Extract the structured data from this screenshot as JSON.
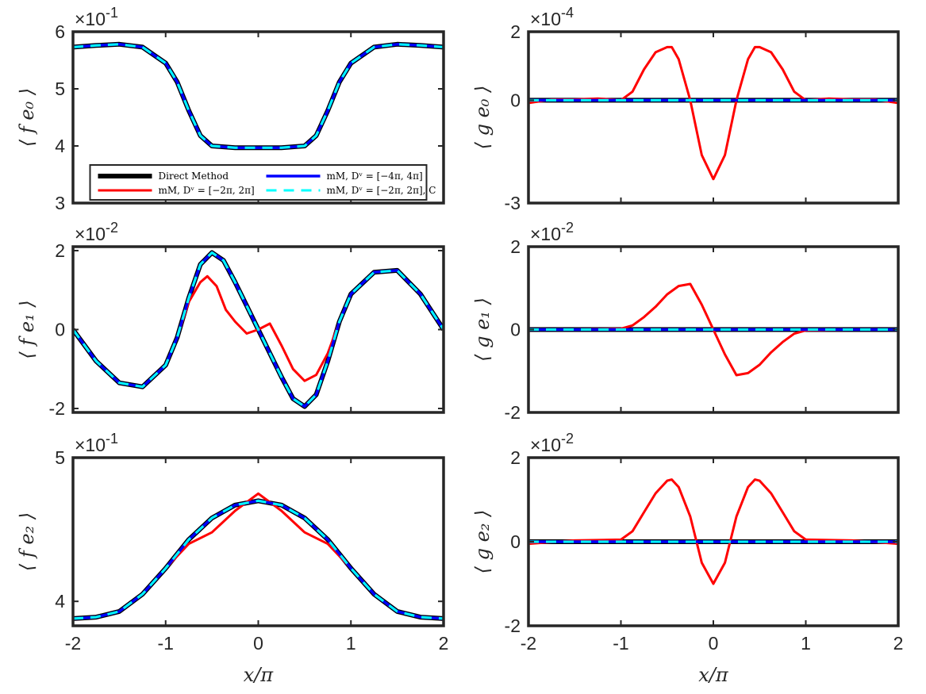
{
  "colors": {
    "direct": "#000000",
    "mm2": "#ff0000",
    "mm4": "#0000ff",
    "mmc": "#00ffff",
    "axis": "#262626"
  },
  "chart_data": [
    {
      "type": "line",
      "id": "fe0",
      "ylabel": "⟨ f e₀ ⟩",
      "xlabel": "",
      "multiplier_base": "×10",
      "multiplier_exp": "-1",
      "xlim": [
        -2,
        2
      ],
      "ylim": [
        3,
        6
      ],
      "yticks": [
        3,
        4,
        5,
        6
      ],
      "ytick_labels": [
        "3",
        "4",
        "5",
        "6"
      ],
      "xticks": [
        -2,
        -1,
        0,
        1,
        2
      ],
      "xtick_labels": [],
      "legend": {
        "placement": "lower-center",
        "entries": [
          "Direct Method",
          "mM, Dᵛ = [−2π, 2π]",
          "mM, Dᵛ = [−4π, 4π]",
          "mM, Dᵛ = [−2π, 2π], C"
        ]
      },
      "series": [
        {
          "name": "Direct Method",
          "style": "direct",
          "x": [
            -2,
            -1.75,
            -1.5,
            -1.25,
            -1.0,
            -0.875,
            -0.75,
            -0.625,
            -0.5,
            -0.25,
            0,
            0.25,
            0.5,
            0.625,
            0.75,
            0.875,
            1.0,
            1.25,
            1.5,
            1.75,
            2
          ],
          "y": [
            5.73,
            5.76,
            5.78,
            5.73,
            5.45,
            5.12,
            4.62,
            4.18,
            4.0,
            3.97,
            3.97,
            3.97,
            4.0,
            4.18,
            4.62,
            5.12,
            5.45,
            5.73,
            5.78,
            5.76,
            5.73
          ]
        },
        {
          "name": "mM, Dᵛ = [−2π, 2π]",
          "style": "mm2",
          "x": [
            -2,
            -1.75,
            -1.5,
            -1.25,
            -1.0,
            -0.875,
            -0.75,
            -0.625,
            -0.5,
            -0.25,
            0,
            0.25,
            0.5,
            0.625,
            0.75,
            0.875,
            1.0,
            1.25,
            1.5,
            1.75,
            2
          ],
          "y": [
            5.73,
            5.76,
            5.78,
            5.73,
            5.45,
            5.12,
            4.62,
            4.18,
            4.0,
            3.97,
            3.97,
            3.97,
            4.0,
            4.18,
            4.62,
            5.12,
            5.45,
            5.73,
            5.78,
            5.76,
            5.73
          ]
        },
        {
          "name": "mM, Dᵛ = [−4π, 4π]",
          "style": "mm4",
          "x": [
            -2,
            -1.75,
            -1.5,
            -1.25,
            -1.0,
            -0.875,
            -0.75,
            -0.625,
            -0.5,
            -0.25,
            0,
            0.25,
            0.5,
            0.625,
            0.75,
            0.875,
            1.0,
            1.25,
            1.5,
            1.75,
            2
          ],
          "y": [
            5.73,
            5.76,
            5.78,
            5.73,
            5.45,
            5.12,
            4.62,
            4.18,
            4.0,
            3.97,
            3.97,
            3.97,
            4.0,
            4.18,
            4.62,
            5.12,
            5.45,
            5.73,
            5.78,
            5.76,
            5.73
          ]
        },
        {
          "name": "mM, Dᵛ = [−2π, 2π], C",
          "style": "mmc",
          "x": [
            -2,
            -1.75,
            -1.5,
            -1.25,
            -1.0,
            -0.875,
            -0.75,
            -0.625,
            -0.5,
            -0.25,
            0,
            0.25,
            0.5,
            0.625,
            0.75,
            0.875,
            1.0,
            1.25,
            1.5,
            1.75,
            2
          ],
          "y": [
            5.73,
            5.76,
            5.78,
            5.73,
            5.45,
            5.12,
            4.62,
            4.18,
            4.0,
            3.97,
            3.97,
            3.97,
            4.0,
            4.18,
            4.62,
            5.12,
            5.45,
            5.73,
            5.78,
            5.76,
            5.73
          ]
        }
      ]
    },
    {
      "type": "line",
      "id": "ge0",
      "ylabel": "⟨ g e₀ ⟩",
      "xlabel": "",
      "multiplier_base": "×10",
      "multiplier_exp": "-4",
      "xlim": [
        -2,
        2
      ],
      "ylim": [
        -3,
        2
      ],
      "yticks": [
        -3,
        0,
        2
      ],
      "ytick_labels": [
        "-3",
        "0",
        "2"
      ],
      "xticks": [
        -2,
        -1,
        0,
        1,
        2
      ],
      "xtick_labels": [],
      "series": [
        {
          "name": "mM, Dᵛ = [−2π, 2π]",
          "style": "mm2",
          "x": [
            -2,
            -1.75,
            -1.5,
            -1.25,
            -1.0,
            -0.875,
            -0.75,
            -0.625,
            -0.5,
            -0.45,
            -0.375,
            -0.25,
            -0.125,
            0,
            0.125,
            0.25,
            0.375,
            0.45,
            0.5,
            0.625,
            0.75,
            0.875,
            1.0,
            1.25,
            1.5,
            1.75,
            2
          ],
          "y": [
            -0.08,
            0.02,
            0.02,
            0.05,
            0.0,
            0.25,
            0.9,
            1.4,
            1.55,
            1.55,
            1.2,
            0.0,
            -1.6,
            -2.3,
            -1.6,
            0.0,
            1.2,
            1.55,
            1.55,
            1.4,
            0.9,
            0.25,
            0.0,
            0.05,
            0.02,
            0.02,
            -0.08
          ]
        },
        {
          "name": "Direct Method",
          "style": "direct",
          "x": [
            -2,
            2
          ],
          "y": [
            0.0,
            0.0
          ]
        },
        {
          "name": "mM, Dᵛ = [−4π, 4π]",
          "style": "mm4",
          "x": [
            -2,
            2
          ],
          "y": [
            0.0,
            0.0
          ]
        },
        {
          "name": "mM, Dᵛ = [−2π, 2π], C",
          "style": "mmc",
          "x": [
            -2,
            2
          ],
          "y": [
            0.0,
            0.0
          ]
        }
      ]
    },
    {
      "type": "line",
      "id": "fe1",
      "ylabel": "⟨ f e₁ ⟩",
      "xlabel": "",
      "multiplier_base": "×10",
      "multiplier_exp": "-2",
      "xlim": [
        -2,
        2
      ],
      "ylim": [
        -2.1,
        2.1
      ],
      "yticks": [
        -2,
        0,
        2
      ],
      "ytick_labels": [
        "-2",
        "0",
        "2"
      ],
      "xticks": [
        -2,
        -1,
        0,
        1,
        2
      ],
      "xtick_labels": [],
      "series": [
        {
          "name": "Direct Method",
          "style": "direct",
          "x": [
            -2,
            -1.75,
            -1.5,
            -1.25,
            -1.0,
            -0.875,
            -0.75,
            -0.625,
            -0.5,
            -0.375,
            -0.25,
            -0.125,
            0,
            0.125,
            0.25,
            0.375,
            0.5,
            0.625,
            0.75,
            0.875,
            1.0,
            1.25,
            1.5,
            1.75,
            2
          ],
          "y": [
            0.0,
            -0.8,
            -1.35,
            -1.45,
            -0.9,
            -0.2,
            0.8,
            1.65,
            1.95,
            1.75,
            1.2,
            0.6,
            0.0,
            -0.6,
            -1.2,
            -1.75,
            -1.95,
            -1.65,
            -0.8,
            0.2,
            0.9,
            1.45,
            1.5,
            0.9,
            0.0
          ]
        },
        {
          "name": "mM, Dᵛ = [−2π, 2π]",
          "style": "mm2",
          "x": [
            -2,
            -1.75,
            -1.5,
            -1.25,
            -1.0,
            -0.875,
            -0.75,
            -0.625,
            -0.55,
            -0.45,
            -0.35,
            -0.25,
            -0.125,
            0,
            0.125,
            0.25,
            0.375,
            0.5,
            0.625,
            0.75,
            0.875,
            1.0,
            1.25,
            1.5,
            1.75,
            2
          ],
          "y": [
            0.0,
            -0.8,
            -1.35,
            -1.45,
            -0.9,
            -0.2,
            0.7,
            1.2,
            1.35,
            1.1,
            0.5,
            0.2,
            -0.1,
            0.0,
            0.15,
            -0.4,
            -1.0,
            -1.3,
            -1.15,
            -0.6,
            0.2,
            0.9,
            1.45,
            1.5,
            0.9,
            0.0
          ]
        },
        {
          "name": "mM, Dᵛ = [−4π, 4π]",
          "style": "mm4",
          "x": [
            -2,
            -1.75,
            -1.5,
            -1.25,
            -1.0,
            -0.875,
            -0.75,
            -0.625,
            -0.5,
            -0.375,
            -0.25,
            -0.125,
            0,
            0.125,
            0.25,
            0.375,
            0.5,
            0.625,
            0.75,
            0.875,
            1.0,
            1.25,
            1.5,
            1.75,
            2
          ],
          "y": [
            0.0,
            -0.8,
            -1.35,
            -1.45,
            -0.9,
            -0.2,
            0.8,
            1.65,
            1.95,
            1.75,
            1.2,
            0.6,
            0.0,
            -0.6,
            -1.2,
            -1.75,
            -1.95,
            -1.65,
            -0.8,
            0.2,
            0.9,
            1.45,
            1.5,
            0.9,
            0.0
          ]
        },
        {
          "name": "mM, Dᵛ = [−2π, 2π], C",
          "style": "mmc",
          "x": [
            -2,
            -1.75,
            -1.5,
            -1.25,
            -1.0,
            -0.875,
            -0.75,
            -0.625,
            -0.5,
            -0.375,
            -0.25,
            -0.125,
            0,
            0.125,
            0.25,
            0.375,
            0.5,
            0.625,
            0.75,
            0.875,
            1.0,
            1.25,
            1.5,
            1.75,
            2
          ],
          "y": [
            0.0,
            -0.8,
            -1.35,
            -1.45,
            -0.9,
            -0.2,
            0.8,
            1.65,
            1.95,
            1.75,
            1.2,
            0.6,
            0.0,
            -0.6,
            -1.2,
            -1.75,
            -1.95,
            -1.65,
            -0.8,
            0.2,
            0.9,
            1.45,
            1.5,
            0.9,
            0.0
          ]
        }
      ]
    },
    {
      "type": "line",
      "id": "ge1",
      "ylabel": "⟨ g e₁ ⟩",
      "xlabel": "",
      "multiplier_base": "×10",
      "multiplier_exp": "-2",
      "xlim": [
        -2,
        2
      ],
      "ylim": [
        -2,
        2
      ],
      "yticks": [
        -2,
        0,
        2
      ],
      "ytick_labels": [
        "-2",
        "0",
        "2"
      ],
      "xticks": [
        -2,
        -1,
        0,
        1,
        2
      ],
      "xtick_labels": [],
      "series": [
        {
          "name": "mM, Dᵛ = [−2π, 2π]",
          "style": "mm2",
          "x": [
            -2,
            -1.5,
            -1.0,
            -0.875,
            -0.75,
            -0.625,
            -0.5,
            -0.375,
            -0.25,
            -0.125,
            0,
            0.125,
            0.25,
            0.375,
            0.5,
            0.625,
            0.75,
            0.875,
            1.0,
            1.5,
            2
          ],
          "y": [
            0.0,
            0.0,
            0.02,
            0.1,
            0.3,
            0.55,
            0.85,
            1.05,
            1.1,
            0.6,
            0.0,
            -0.6,
            -1.1,
            -1.05,
            -0.85,
            -0.55,
            -0.3,
            -0.1,
            -0.02,
            0.0,
            0.0
          ]
        },
        {
          "name": "Direct Method",
          "style": "direct",
          "x": [
            -2,
            2
          ],
          "y": [
            0.0,
            0.0
          ]
        },
        {
          "name": "mM, Dᵛ = [−4π, 4π]",
          "style": "mm4",
          "x": [
            -2,
            2
          ],
          "y": [
            0.0,
            0.0
          ]
        },
        {
          "name": "mM, Dᵛ = [−2π, 2π], C",
          "style": "mmc",
          "x": [
            -2,
            2
          ],
          "y": [
            0.0,
            0.0
          ]
        }
      ]
    },
    {
      "type": "line",
      "id": "fe2",
      "ylabel": "⟨ f e₂ ⟩",
      "xlabel": "x/π",
      "multiplier_base": "×10",
      "multiplier_exp": "-1",
      "xlim": [
        -2,
        2
      ],
      "ylim": [
        3.83,
        5.0
      ],
      "yticks": [
        4,
        5
      ],
      "ytick_labels": [
        "4",
        "5"
      ],
      "xticks": [
        -2,
        -1,
        0,
        1,
        2
      ],
      "xtick_labels": [
        "-2",
        "-1",
        "0",
        "1",
        "2"
      ],
      "series": [
        {
          "name": "Direct Method",
          "style": "direct",
          "x": [
            -2,
            -1.75,
            -1.5,
            -1.25,
            -1.0,
            -0.75,
            -0.5,
            -0.25,
            0,
            0.25,
            0.5,
            0.75,
            1.0,
            1.25,
            1.5,
            1.75,
            2
          ],
          "y": [
            3.88,
            3.89,
            3.93,
            4.05,
            4.23,
            4.43,
            4.58,
            4.67,
            4.7,
            4.67,
            4.58,
            4.43,
            4.23,
            4.05,
            3.93,
            3.89,
            3.88
          ]
        },
        {
          "name": "mM, Dᵛ = [−2π, 2π]",
          "style": "mm2",
          "x": [
            -2,
            -1.75,
            -1.5,
            -1.25,
            -1.0,
            -0.75,
            -0.5,
            -0.25,
            0,
            0.25,
            0.5,
            0.75,
            1.0,
            1.25,
            1.5,
            1.75,
            2
          ],
          "y": [
            3.88,
            3.89,
            3.93,
            4.05,
            4.23,
            4.4,
            4.48,
            4.63,
            4.75,
            4.63,
            4.48,
            4.4,
            4.23,
            4.05,
            3.93,
            3.89,
            3.88
          ]
        },
        {
          "name": "mM, Dᵛ = [−4π, 4π]",
          "style": "mm4",
          "x": [
            -2,
            -1.75,
            -1.5,
            -1.25,
            -1.0,
            -0.75,
            -0.5,
            -0.25,
            0,
            0.25,
            0.5,
            0.75,
            1.0,
            1.25,
            1.5,
            1.75,
            2
          ],
          "y": [
            3.88,
            3.89,
            3.93,
            4.05,
            4.23,
            4.43,
            4.58,
            4.67,
            4.7,
            4.67,
            4.58,
            4.43,
            4.23,
            4.05,
            3.93,
            3.89,
            3.88
          ]
        },
        {
          "name": "mM, Dᵛ = [−2π, 2π], C",
          "style": "mmc",
          "x": [
            -2,
            -1.75,
            -1.5,
            -1.25,
            -1.0,
            -0.75,
            -0.5,
            -0.25,
            0,
            0.25,
            0.5,
            0.75,
            1.0,
            1.25,
            1.5,
            1.75,
            2
          ],
          "y": [
            3.88,
            3.89,
            3.93,
            4.05,
            4.23,
            4.43,
            4.58,
            4.67,
            4.7,
            4.67,
            4.58,
            4.43,
            4.23,
            4.05,
            3.93,
            3.89,
            3.88
          ]
        }
      ]
    },
    {
      "type": "line",
      "id": "ge2",
      "ylabel": "⟨ g e₂ ⟩",
      "xlabel": "x/π",
      "multiplier_base": "×10",
      "multiplier_exp": "-2",
      "xlim": [
        -2,
        2
      ],
      "ylim": [
        -2,
        2
      ],
      "yticks": [
        -2,
        0,
        2
      ],
      "ytick_labels": [
        "-2",
        "0",
        "2"
      ],
      "xticks": [
        -2,
        -1,
        0,
        1,
        2
      ],
      "xtick_labels": [
        "-2",
        "-1",
        "0",
        "1",
        "2"
      ],
      "series": [
        {
          "name": "mM, Dᵛ = [−2π, 2π]",
          "style": "mm2",
          "x": [
            -2,
            -1.5,
            -1.0,
            -0.875,
            -0.75,
            -0.625,
            -0.5,
            -0.45,
            -0.375,
            -0.25,
            -0.125,
            0,
            0.125,
            0.25,
            0.375,
            0.45,
            0.5,
            0.625,
            0.75,
            0.875,
            1.0,
            1.5,
            2
          ],
          "y": [
            -0.05,
            0.03,
            0.05,
            0.25,
            0.7,
            1.15,
            1.45,
            1.48,
            1.3,
            0.6,
            -0.5,
            -1.0,
            -0.5,
            0.6,
            1.3,
            1.48,
            1.45,
            1.15,
            0.7,
            0.25,
            0.05,
            0.03,
            -0.05
          ]
        },
        {
          "name": "Direct Method",
          "style": "direct",
          "x": [
            -2,
            2
          ],
          "y": [
            0.0,
            0.0
          ]
        },
        {
          "name": "mM, Dᵛ = [−4π, 4π]",
          "style": "mm4",
          "x": [
            -2,
            2
          ],
          "y": [
            0.0,
            0.0
          ]
        },
        {
          "name": "mM, Dᵛ = [−2π, 2π], C",
          "style": "mmc",
          "x": [
            -2,
            2
          ],
          "y": [
            0.0,
            0.0
          ]
        }
      ]
    }
  ]
}
